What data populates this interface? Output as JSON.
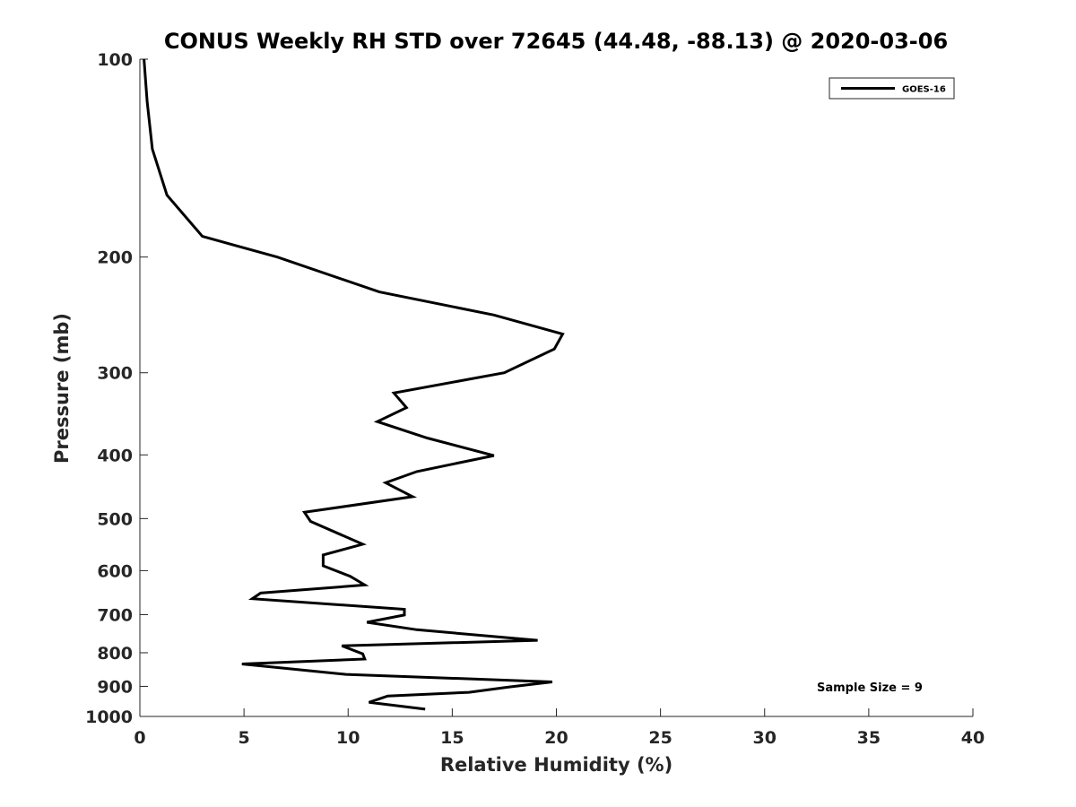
{
  "chart_data": {
    "type": "line",
    "title": "CONUS Weekly RH STD over 72645 (44.48, -88.13) @ 2020-03-06",
    "xlabel": "Relative Humidity (%)",
    "ylabel": "Pressure (mb)",
    "xlim": [
      0,
      40
    ],
    "ylim": [
      100,
      1000
    ],
    "yscale": "log",
    "yreversed": true,
    "xticks": [
      0,
      5,
      10,
      15,
      20,
      25,
      30,
      35,
      40
    ],
    "yticks": [
      100,
      200,
      300,
      400,
      500,
      600,
      700,
      800,
      900,
      1000
    ],
    "legend": {
      "position": "top-right",
      "entries": [
        "GOES-16"
      ]
    },
    "annotation": "Sample Size = 9",
    "line_color": "#000000",
    "series": [
      {
        "name": "GOES-16",
        "x": [
          0.2,
          0.35,
          0.6,
          1.3,
          3.0,
          6.6,
          11.5,
          17.0,
          20.3,
          19.9,
          17.5,
          12.2,
          12.8,
          11.4,
          13.8,
          17.0,
          13.3,
          11.8,
          13.1,
          7.9,
          8.2,
          10.7,
          8.8,
          8.8,
          10.1,
          10.8,
          5.8,
          5.4,
          12.7,
          12.7,
          10.9,
          13.3,
          19.1,
          9.7,
          10.7,
          10.8,
          4.9,
          9.9,
          19.8,
          17.7,
          15.8,
          11.9,
          11.0,
          13.7
        ],
        "y": [
          100,
          116,
          137,
          161,
          186,
          200,
          226,
          245,
          262,
          276,
          300,
          322,
          339,
          356,
          377,
          401,
          424,
          441,
          463,
          489,
          505,
          547,
          568,
          590,
          612,
          631,
          649,
          662,
          687,
          701,
          719,
          738,
          766,
          781,
          803,
          818,
          832,
          863,
          886,
          902,
          919,
          931,
          952,
          975
        ]
      }
    ]
  }
}
